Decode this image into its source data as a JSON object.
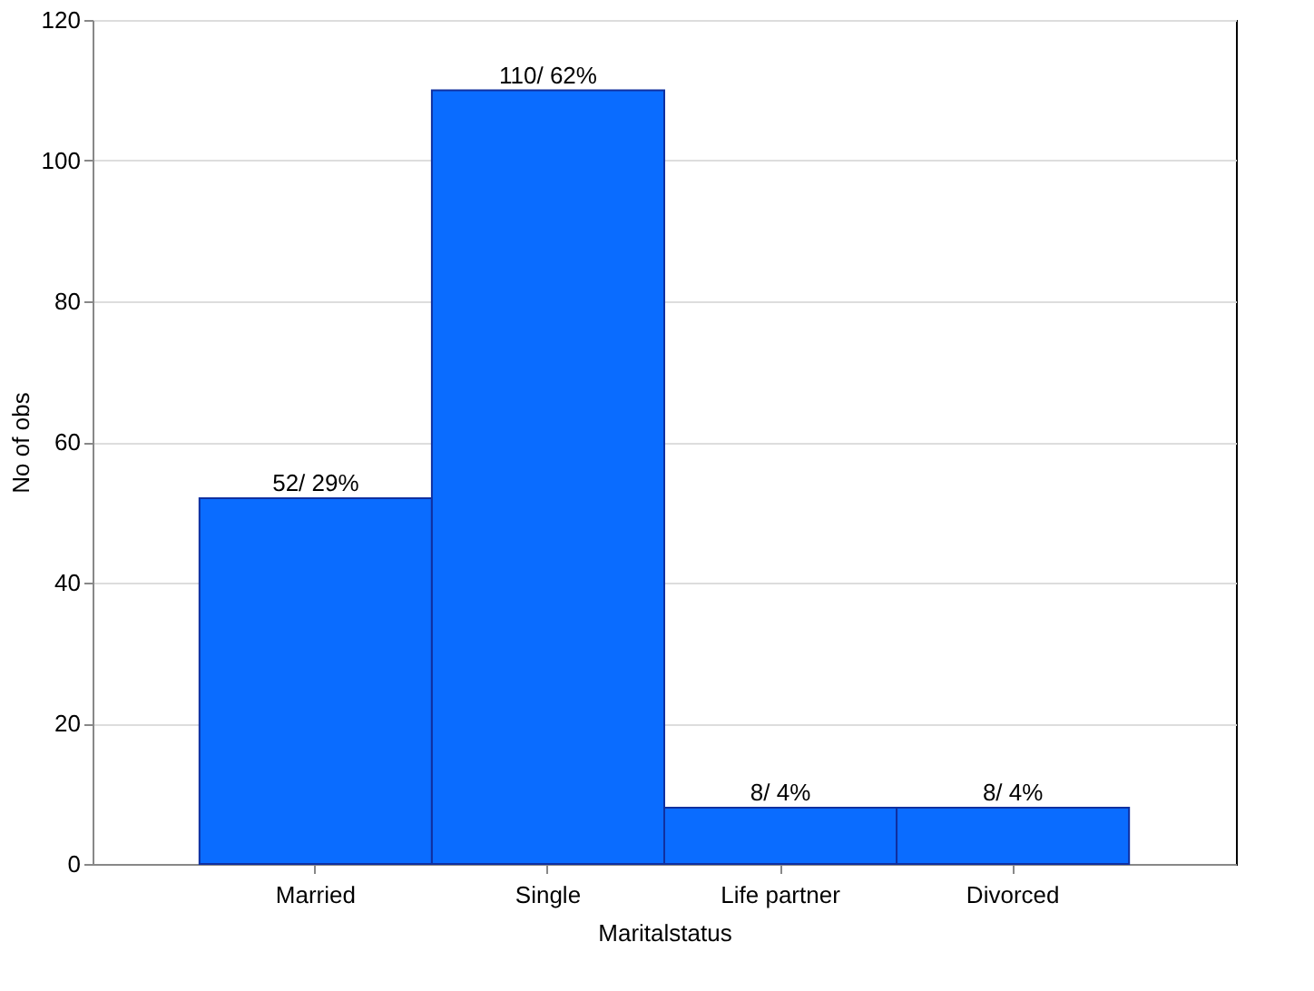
{
  "chart_data": {
    "type": "bar",
    "xlabel": "Maritalstatus",
    "ylabel": "No of obs",
    "categories": [
      "Married",
      "Single",
      "Life partner",
      "Divorced"
    ],
    "values": [
      52,
      110,
      8,
      8
    ],
    "value_labels": [
      "52/ 29%",
      "110/ 62%",
      "8/ 4%",
      "8/ 4%"
    ],
    "color": "#0a6cff",
    "ylim": [
      0,
      120
    ],
    "yticks": [
      0,
      20,
      40,
      60,
      80,
      100,
      120
    ],
    "grid": "y"
  }
}
